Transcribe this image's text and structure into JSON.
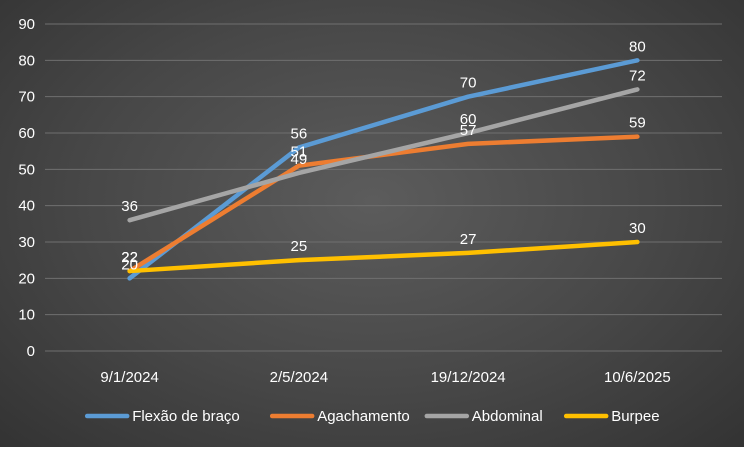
{
  "chart_data": {
    "type": "line",
    "x": [
      "9/1/2024",
      "2/5/2024",
      "19/12/2024",
      "10/6/2025"
    ],
    "ylim": [
      0,
      90
    ],
    "yticks": [
      0,
      10,
      20,
      30,
      40,
      50,
      60,
      70,
      80,
      90
    ],
    "grid": true,
    "legend_position": "bottom",
    "data_labels": true,
    "series": [
      {
        "name": "Flexão de braço",
        "color": "#5B9BD5",
        "values": [
          20,
          56,
          70,
          80
        ]
      },
      {
        "name": "Agachamento",
        "color": "#ED7D31",
        "values": [
          22,
          51,
          57,
          59
        ]
      },
      {
        "name": "Abdominal",
        "color": "#A5A5A5",
        "values": [
          36,
          49,
          60,
          72
        ]
      },
      {
        "name": "Burpee",
        "color": "#FFC000",
        "values": [
          22,
          25,
          27,
          30
        ]
      }
    ]
  }
}
